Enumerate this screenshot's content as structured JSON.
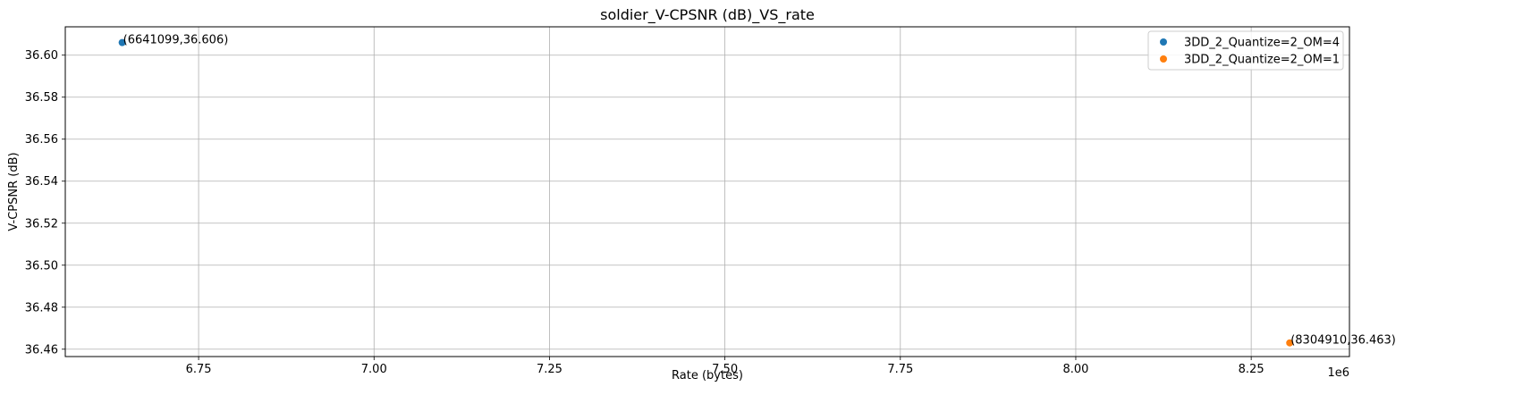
{
  "chart_data": {
    "type": "scatter",
    "title": "soldier_V-CPSNR (dB)_VS_rate",
    "xlabel": "Rate (bytes)",
    "ylabel": "V-CPSNR (dB)",
    "x_offset_label": "1e6",
    "xlim": [
      6.56,
      8.39
    ],
    "ylim": [
      36.4565,
      36.6135
    ],
    "x_tick_values": [
      6.75,
      7.0,
      7.25,
      7.5,
      7.75,
      8.0,
      8.25
    ],
    "x_ticks": [
      "6.75",
      "7.00",
      "7.25",
      "7.50",
      "7.75",
      "8.00",
      "8.25"
    ],
    "y_tick_values": [
      36.46,
      36.48,
      36.5,
      36.52,
      36.54,
      36.56,
      36.58,
      36.6
    ],
    "y_ticks": [
      "36.46",
      "36.48",
      "36.50",
      "36.52",
      "36.54",
      "36.56",
      "36.58",
      "36.60"
    ],
    "grid": true,
    "legend_position": "top-right",
    "series": [
      {
        "name": "3DD_2_Quantize=2_OM=4",
        "color": "#1f77b4",
        "points": [
          {
            "x": 6.641099,
            "y": 36.606,
            "label": "(6641099,36.606)"
          }
        ]
      },
      {
        "name": "3DD_2_Quantize=2_OM=1",
        "color": "#ff7f0e",
        "points": [
          {
            "x": 8.30491,
            "y": 36.463,
            "label": "(8304910,36.463)"
          }
        ]
      }
    ]
  }
}
